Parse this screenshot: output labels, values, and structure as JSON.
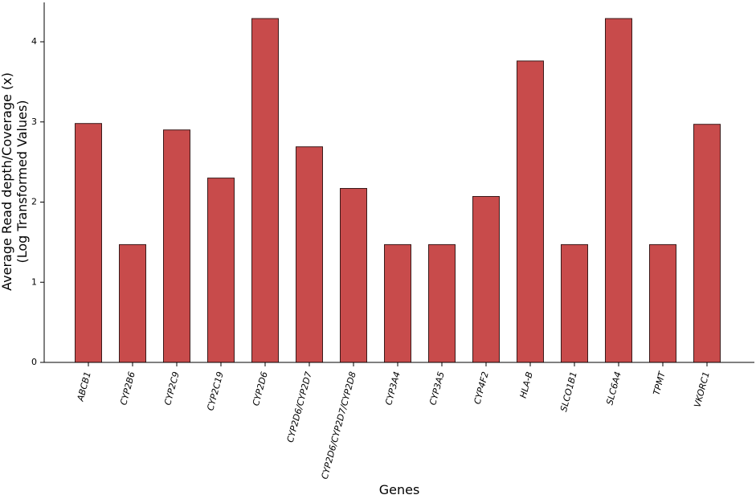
{
  "chart_data": {
    "type": "bar",
    "title": "",
    "xlabel": "Genes",
    "ylabel_lines": [
      "Average Read depth/Coverage (x)",
      "(Log Transformed Values)"
    ],
    "categories": [
      "ABCB1",
      "CYP2B6",
      "CYP2C9",
      "CYP2C19",
      "CYP2D6",
      "CYP2D6/CYP2D7",
      "CYP2D6/CYP2D7/CYP2D8",
      "CYP3A4",
      "CYP3A5",
      "CYP4F2",
      "HLA-B",
      "SLCO1B1",
      "SLC6A4",
      "TPMT",
      "VKORC1"
    ],
    "values": [
      2.98,
      1.47,
      2.9,
      2.3,
      4.29,
      2.69,
      2.17,
      1.47,
      1.47,
      2.07,
      3.76,
      1.47,
      4.29,
      1.47,
      2.97
    ],
    "ylim": [
      0,
      4.3
    ],
    "yticks": [
      "0",
      "1",
      "2",
      "3",
      "4"
    ],
    "grid": false,
    "legend": "none",
    "colors": {
      "bar_fill": "#c84b4b",
      "bar_edge": "#3a1a1a",
      "axis": "#000000"
    }
  }
}
